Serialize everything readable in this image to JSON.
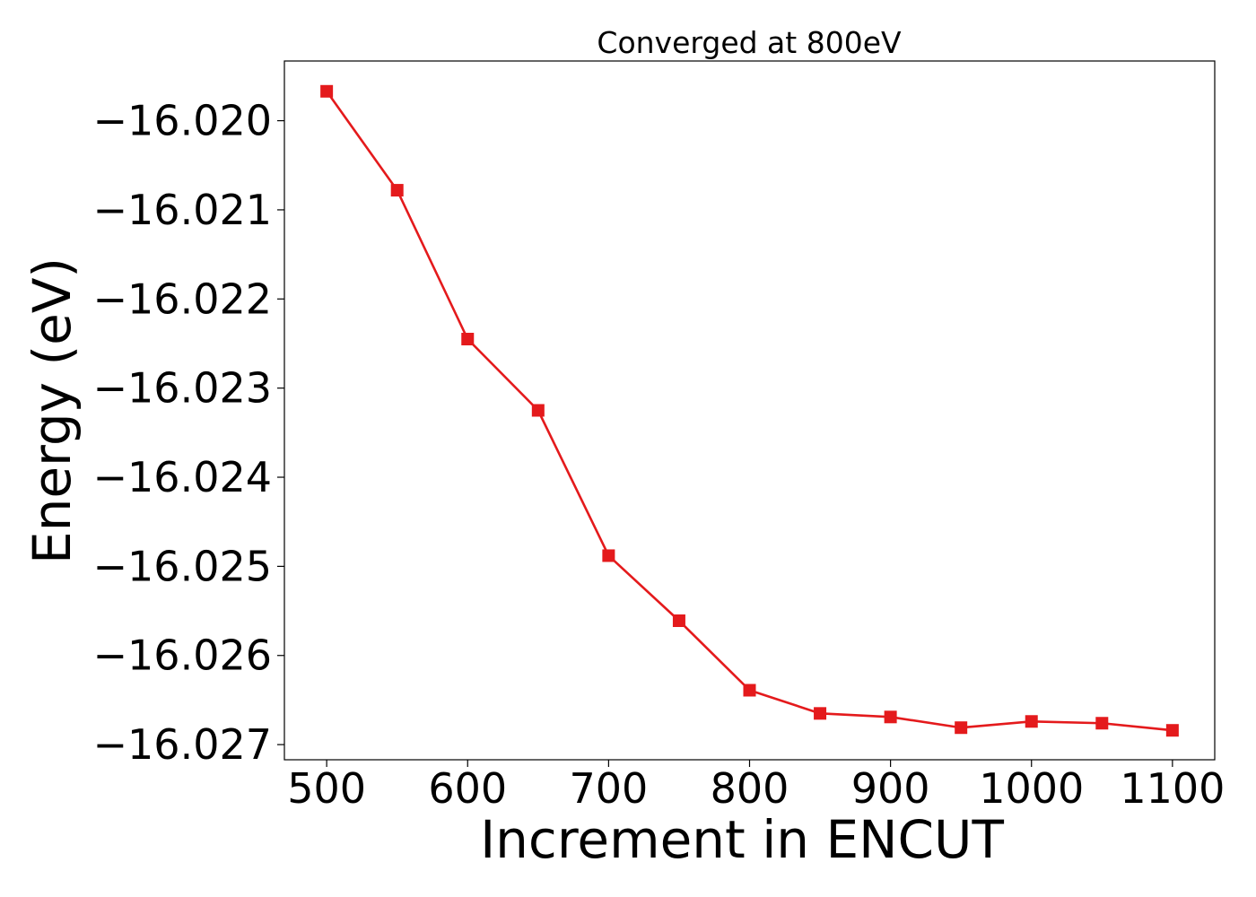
{
  "chart_data": {
    "type": "line",
    "title": "Converged at 800eV",
    "xlabel": "Increment in ENCUT",
    "ylabel": "Energy (eV)",
    "xlim": [
      470,
      1130
    ],
    "ylim": [
      -16.02717,
      -16.01933
    ],
    "xticks": [
      500,
      600,
      700,
      800,
      900,
      1000,
      1100
    ],
    "yticks": [
      -16.02,
      -16.021,
      -16.022,
      -16.023,
      -16.024,
      -16.025,
      -16.026,
      -16.027
    ],
    "ytick_labels": [
      "−16.020",
      "−16.021",
      "−16.022",
      "−16.023",
      "−16.024",
      "−16.025",
      "−16.026",
      "−16.027"
    ],
    "grid": false,
    "series": [
      {
        "color": "#e41a1c",
        "marker": "square",
        "x": [
          500,
          550,
          600,
          650,
          700,
          750,
          800,
          850,
          900,
          950,
          1000,
          1050,
          1100
        ],
        "y": [
          -16.01967,
          -16.02078,
          -16.02245,
          -16.02325,
          -16.02488,
          -16.02561,
          -16.02639,
          -16.02665,
          -16.02669,
          -16.02681,
          -16.02674,
          -16.02676,
          -16.02684
        ]
      }
    ]
  }
}
